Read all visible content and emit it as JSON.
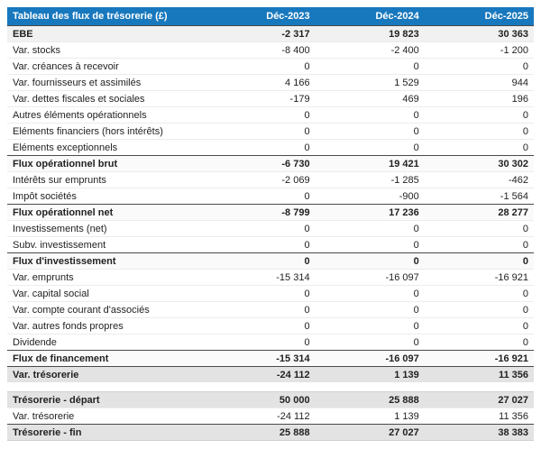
{
  "colors": {
    "header_bg": "#1878BE",
    "header_text": "#ffffff",
    "row_bg": "#ffffff",
    "section_row_bg": "#f1f1f1",
    "subtotal_row_bg": "#fafafa",
    "total_row_bg": "#e3e3e3",
    "text": "#222222",
    "divider_dark": "#4a4a4a",
    "divider_light": "#ececec"
  },
  "table": {
    "title": "Tableau des flux de trésorerie (£)",
    "columns": [
      "Déc-2023",
      "Déc-2024",
      "Déc-2025"
    ],
    "rows": [
      {
        "label": "EBE",
        "values": [
          "-2 317",
          "19 823",
          "30 363"
        ],
        "style": "section-gray"
      },
      {
        "label": "Var. stocks",
        "values": [
          "-8 400",
          "-2 400",
          "-1 200"
        ],
        "style": "normal"
      },
      {
        "label": "Var. créances à recevoir",
        "values": [
          "0",
          "0",
          "0"
        ],
        "style": "normal"
      },
      {
        "label": "Var. fournisseurs et assimilés",
        "values": [
          "4 166",
          "1 529",
          "944"
        ],
        "style": "normal"
      },
      {
        "label": "Var. dettes fiscales et sociales",
        "values": [
          "-179",
          "469",
          "196"
        ],
        "style": "normal"
      },
      {
        "label": "Autres éléments opérationnels",
        "values": [
          "0",
          "0",
          "0"
        ],
        "style": "normal"
      },
      {
        "label": "Eléments financiers (hors intérêts)",
        "values": [
          "0",
          "0",
          "0"
        ],
        "style": "normal"
      },
      {
        "label": "Eléments exceptionnels",
        "values": [
          "0",
          "0",
          "0"
        ],
        "style": "normal"
      },
      {
        "label": "Flux opérationnel brut",
        "values": [
          "-6 730",
          "19 421",
          "30 302"
        ],
        "style": "subtotal"
      },
      {
        "label": "Intérêts sur emprunts",
        "values": [
          "-2 069",
          "-1 285",
          "-462"
        ],
        "style": "normal"
      },
      {
        "label": "Impôt sociétés",
        "values": [
          "0",
          "-900",
          "-1 564"
        ],
        "style": "normal"
      },
      {
        "label": "Flux opérationnel net",
        "values": [
          "-8 799",
          "17 236",
          "28 277"
        ],
        "style": "subtotal"
      },
      {
        "label": "Investissements (net)",
        "values": [
          "0",
          "0",
          "0"
        ],
        "style": "normal"
      },
      {
        "label": "Subv. investissement",
        "values": [
          "0",
          "0",
          "0"
        ],
        "style": "normal"
      },
      {
        "label": "Flux d'investissement",
        "values": [
          "0",
          "0",
          "0"
        ],
        "style": "subtotal"
      },
      {
        "label": "Var. emprunts",
        "values": [
          "-15 314",
          "-16 097",
          "-16 921"
        ],
        "style": "normal"
      },
      {
        "label": "Var. capital social",
        "values": [
          "0",
          "0",
          "0"
        ],
        "style": "normal"
      },
      {
        "label": "Var. compte courant d'associés",
        "values": [
          "0",
          "0",
          "0"
        ],
        "style": "normal"
      },
      {
        "label": "Var. autres fonds propres",
        "values": [
          "0",
          "0",
          "0"
        ],
        "style": "normal"
      },
      {
        "label": "Dividende",
        "values": [
          "0",
          "0",
          "0"
        ],
        "style": "normal"
      },
      {
        "label": "Flux de financement",
        "values": [
          "-15 314",
          "-16 097",
          "-16 921"
        ],
        "style": "subtotal"
      },
      {
        "label": "Var. trésorerie",
        "values": [
          "-24 112",
          "1 139",
          "11 356"
        ],
        "style": "total-dark"
      }
    ],
    "summary_rows": [
      {
        "label": "Trésorerie - départ",
        "values": [
          "50 000",
          "25 888",
          "27 027"
        ],
        "style": "start-gray"
      },
      {
        "label": "Var. trésorerie",
        "values": [
          "-24 112",
          "1 139",
          "11 356"
        ],
        "style": "normal"
      },
      {
        "label": "Trésorerie - fin",
        "values": [
          "25 888",
          "27 027",
          "38 383"
        ],
        "style": "total-dark last"
      }
    ]
  },
  "chart_data": {
    "type": "table",
    "title": "Tableau des flux de trésorerie (£)",
    "columns": [
      "Déc-2023",
      "Déc-2024",
      "Déc-2025"
    ],
    "rows": [
      {
        "label": "EBE",
        "values": [
          -2317,
          19823,
          30363
        ]
      },
      {
        "label": "Var. stocks",
        "values": [
          -8400,
          -2400,
          -1200
        ]
      },
      {
        "label": "Var. créances à recevoir",
        "values": [
          0,
          0,
          0
        ]
      },
      {
        "label": "Var. fournisseurs et assimilés",
        "values": [
          4166,
          1529,
          944
        ]
      },
      {
        "label": "Var. dettes fiscales et sociales",
        "values": [
          -179,
          469,
          196
        ]
      },
      {
        "label": "Autres éléments opérationnels",
        "values": [
          0,
          0,
          0
        ]
      },
      {
        "label": "Eléments financiers (hors intérêts)",
        "values": [
          0,
          0,
          0
        ]
      },
      {
        "label": "Eléments exceptionnels",
        "values": [
          0,
          0,
          0
        ]
      },
      {
        "label": "Flux opérationnel brut",
        "values": [
          -6730,
          19421,
          30302
        ]
      },
      {
        "label": "Intérêts sur emprunts",
        "values": [
          -2069,
          -1285,
          -462
        ]
      },
      {
        "label": "Impôt sociétés",
        "values": [
          0,
          -900,
          -1564
        ]
      },
      {
        "label": "Flux opérationnel net",
        "values": [
          -8799,
          17236,
          28277
        ]
      },
      {
        "label": "Investissements (net)",
        "values": [
          0,
          0,
          0
        ]
      },
      {
        "label": "Subv. investissement",
        "values": [
          0,
          0,
          0
        ]
      },
      {
        "label": "Flux d'investissement",
        "values": [
          0,
          0,
          0
        ]
      },
      {
        "label": "Var. emprunts",
        "values": [
          -15314,
          -16097,
          -16921
        ]
      },
      {
        "label": "Var. capital social",
        "values": [
          0,
          0,
          0
        ]
      },
      {
        "label": "Var. compte courant d'associés",
        "values": [
          0,
          0,
          0
        ]
      },
      {
        "label": "Var. autres fonds propres",
        "values": [
          0,
          0,
          0
        ]
      },
      {
        "label": "Dividende",
        "values": [
          0,
          0,
          0
        ]
      },
      {
        "label": "Flux de financement",
        "values": [
          -15314,
          -16097,
          -16921
        ]
      },
      {
        "label": "Var. trésorerie",
        "values": [
          -24112,
          1139,
          11356
        ]
      },
      {
        "label": "Trésorerie - départ",
        "values": [
          50000,
          25888,
          27027
        ]
      },
      {
        "label": "Var. trésorerie",
        "values": [
          -24112,
          1139,
          11356
        ]
      },
      {
        "label": "Trésorerie - fin",
        "values": [
          25888,
          27027,
          38383
        ]
      }
    ]
  }
}
